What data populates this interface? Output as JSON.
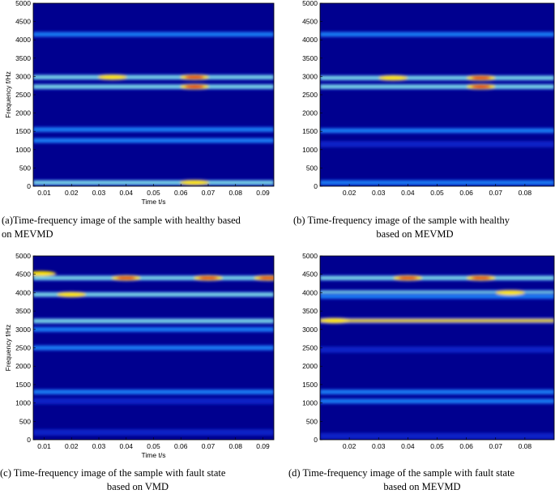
{
  "colors": {
    "background": "#00008f",
    "low": "#0a22c8",
    "mid": "#1e90ff",
    "high": "#8ff8f0",
    "peak": "#ffe600",
    "max": "#e00000"
  },
  "chart_data": [
    {
      "type": "heatmap",
      "panel": "a",
      "caption_lines": [
        "(a)Time-frequency image of the sample with healthy based",
        "on MEVMD"
      ],
      "xlabel": "Time t/s",
      "ylabel": "Frequency f/Hz",
      "xlim": [
        0.006,
        0.094
      ],
      "ylim": [
        0,
        5000
      ],
      "xticks": [
        "0.01",
        "0.02",
        "0.03",
        "0.04",
        "0.05",
        "0.06",
        "0.07",
        "0.08",
        "0.09"
      ],
      "yticks": [
        "0",
        "500",
        "1000",
        "1500",
        "2000",
        "2500",
        "3000",
        "3500",
        "4000",
        "4500",
        "5000"
      ],
      "bands": [
        {
          "freq": 4150,
          "t_start": 0.006,
          "t_end": 0.094,
          "level": 0.55
        },
        {
          "freq": 2980,
          "t_start": 0.006,
          "t_end": 0.094,
          "level": 0.75
        },
        {
          "freq": 2720,
          "t_start": 0.006,
          "t_end": 0.094,
          "level": 0.7
        },
        {
          "freq": 1550,
          "t_start": 0.006,
          "t_end": 0.094,
          "level": 0.45
        },
        {
          "freq": 1250,
          "t_start": 0.006,
          "t_end": 0.094,
          "level": 0.4
        },
        {
          "freq": 100,
          "t_start": 0.006,
          "t_end": 0.094,
          "level": 0.6
        }
      ],
      "hotspots": [
        {
          "t": 0.035,
          "freq": 2980,
          "level": 0.9
        },
        {
          "t": 0.065,
          "freq": 2980,
          "level": 1.0
        },
        {
          "t": 0.065,
          "freq": 2720,
          "level": 1.0
        },
        {
          "t": 0.065,
          "freq": 100,
          "level": 0.85
        }
      ]
    },
    {
      "type": "heatmap",
      "panel": "b",
      "caption_lines": [
        "(b) Time-frequency image of the sample with healthy",
        "based on MEVMD"
      ],
      "xlabel": "",
      "ylabel": "",
      "xlim": [
        0.01,
        0.09
      ],
      "ylim": [
        0,
        5000
      ],
      "xticks": [
        "0.02",
        "0.03",
        "0.04",
        "0.05",
        "0.06",
        "0.07",
        "0.08"
      ],
      "yticks": [
        "0",
        "500",
        "1000",
        "1500",
        "2000",
        "2500",
        "3000",
        "3500",
        "4000",
        "4500",
        "5000"
      ],
      "bands": [
        {
          "freq": 4150,
          "t_start": 0.01,
          "t_end": 0.09,
          "level": 0.5
        },
        {
          "freq": 2960,
          "t_start": 0.01,
          "t_end": 0.09,
          "level": 0.7
        },
        {
          "freq": 2720,
          "t_start": 0.01,
          "t_end": 0.09,
          "level": 0.65
        },
        {
          "freq": 1520,
          "t_start": 0.01,
          "t_end": 0.09,
          "level": 0.4
        },
        {
          "freq": 1150,
          "t_start": 0.01,
          "t_end": 0.09,
          "level": 0.35
        },
        {
          "freq": 100,
          "t_start": 0.01,
          "t_end": 0.09,
          "level": 0.5
        }
      ],
      "hotspots": [
        {
          "t": 0.035,
          "freq": 2960,
          "level": 0.85
        },
        {
          "t": 0.065,
          "freq": 2960,
          "level": 0.95
        },
        {
          "t": 0.065,
          "freq": 2720,
          "level": 0.95
        }
      ]
    },
    {
      "type": "heatmap",
      "panel": "c",
      "caption_lines": [
        "(c) Time-frequency image of the sample with fault state",
        "based on VMD"
      ],
      "xlabel": "Time t/s",
      "ylabel": "Frequency f/Hz",
      "xlim": [
        0.006,
        0.094
      ],
      "ylim": [
        0,
        5000
      ],
      "xticks": [
        "0.01",
        "0.02",
        "0.03",
        "0.04",
        "0.05",
        "0.06",
        "0.07",
        "0.08",
        "0.09"
      ],
      "yticks": [
        "0",
        "500",
        "1000",
        "1500",
        "2000",
        "2500",
        "3000",
        "3500",
        "4000",
        "4500",
        "5000"
      ],
      "bands": [
        {
          "freq": 4400,
          "t_start": 0.006,
          "t_end": 0.094,
          "level": 0.75
        },
        {
          "freq": 3950,
          "t_start": 0.006,
          "t_end": 0.094,
          "level": 0.7
        },
        {
          "freq": 3230,
          "t_start": 0.006,
          "t_end": 0.094,
          "level": 0.75
        },
        {
          "freq": 3000,
          "t_start": 0.006,
          "t_end": 0.094,
          "level": 0.45
        },
        {
          "freq": 2500,
          "t_start": 0.006,
          "t_end": 0.094,
          "level": 0.45
        },
        {
          "freq": 1300,
          "t_start": 0.006,
          "t_end": 0.094,
          "level": 0.55
        },
        {
          "freq": 1050,
          "t_start": 0.006,
          "t_end": 0.094,
          "level": 0.35
        },
        {
          "freq": 200,
          "t_start": 0.006,
          "t_end": 0.094,
          "level": 0.35
        }
      ],
      "hotspots": [
        {
          "t": 0.009,
          "freq": 4520,
          "level": 0.85
        },
        {
          "t": 0.04,
          "freq": 4400,
          "level": 1.0
        },
        {
          "t": 0.07,
          "freq": 4400,
          "level": 1.0
        },
        {
          "t": 0.092,
          "freq": 4400,
          "level": 0.95
        },
        {
          "t": 0.02,
          "freq": 3950,
          "level": 0.85
        }
      ]
    },
    {
      "type": "heatmap",
      "panel": "d",
      "caption_lines": [
        "(d) Time-frequency image of the sample with fault state",
        "based on MEVMD"
      ],
      "xlabel": "",
      "ylabel": "",
      "xlim": [
        0.01,
        0.09
      ],
      "ylim": [
        0,
        5000
      ],
      "xticks": [
        "0.02",
        "0.03",
        "0.04",
        "0.05",
        "0.06",
        "0.07",
        "0.08"
      ],
      "yticks": [
        "0",
        "500",
        "1000",
        "1500",
        "2000",
        "2500",
        "3000",
        "3500",
        "4000",
        "4500",
        "5000"
      ],
      "bands": [
        {
          "freq": 4400,
          "t_start": 0.01,
          "t_end": 0.09,
          "level": 0.7
        },
        {
          "freq": 4000,
          "t_start": 0.01,
          "t_end": 0.09,
          "level": 0.6
        },
        {
          "freq": 3900,
          "t_start": 0.01,
          "t_end": 0.09,
          "level": 0.5
        },
        {
          "freq": 3240,
          "t_start": 0.01,
          "t_end": 0.09,
          "level": 0.8
        },
        {
          "freq": 2450,
          "t_start": 0.01,
          "t_end": 0.09,
          "level": 0.35
        },
        {
          "freq": 1300,
          "t_start": 0.01,
          "t_end": 0.09,
          "level": 0.5
        },
        {
          "freq": 1050,
          "t_start": 0.01,
          "t_end": 0.09,
          "level": 0.4
        },
        {
          "freq": 100,
          "t_start": 0.01,
          "t_end": 0.09,
          "level": 0.35
        }
      ],
      "hotspots": [
        {
          "t": 0.04,
          "freq": 4400,
          "level": 0.95
        },
        {
          "t": 0.065,
          "freq": 4400,
          "level": 0.95
        },
        {
          "t": 0.015,
          "freq": 3240,
          "level": 0.9
        },
        {
          "t": 0.075,
          "freq": 4000,
          "level": 0.8
        }
      ]
    }
  ]
}
